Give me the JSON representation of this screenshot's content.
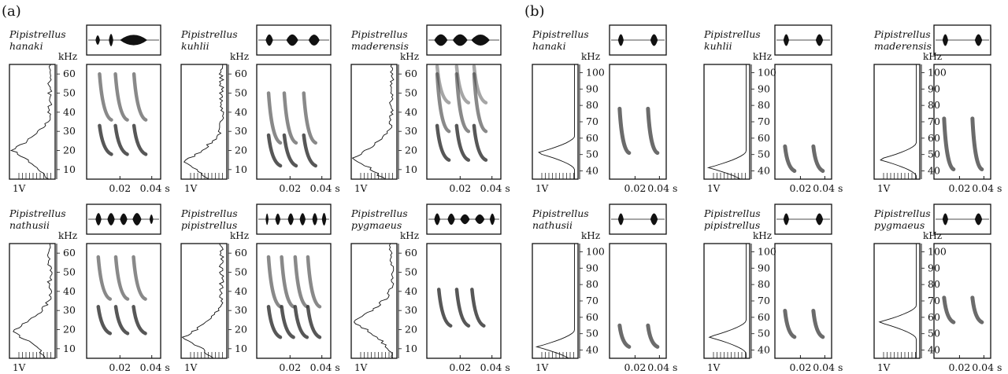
{
  "panels": [
    {
      "label": "(a)",
      "species": [
        {
          "genus": "Pipistrellus",
          "epithet": "hanaki"
        },
        {
          "genus": "Pipistrellus",
          "epithet": "kuhlii"
        },
        {
          "genus": "Pipistrellus",
          "epithet": "maderensis"
        },
        {
          "genus": "Pipistrellus",
          "epithet": "nathusii"
        },
        {
          "genus": "Pipistrellus",
          "epithet": "pipistrellus"
        },
        {
          "genus": "Pipistrellus",
          "epithet": "pygmaeus"
        }
      ],
      "freq_unit": "kHz",
      "freq_ticks": [
        10,
        20,
        30,
        40,
        50,
        60
      ],
      "time_ticks": [
        "0.02",
        "0.04 s"
      ],
      "amp_label": "1V"
    },
    {
      "label": "(b)",
      "species": [
        {
          "genus": "Pipistrellus",
          "epithet": "hanaki"
        },
        {
          "genus": "Pipistrellus",
          "epithet": "kuhlii"
        },
        {
          "genus": "Pipistrellus",
          "epithet": "maderensis"
        },
        {
          "genus": "Pipistrellus",
          "epithet": "nathusii"
        },
        {
          "genus": "Pipistrellus",
          "epithet": "pipistrellus"
        },
        {
          "genus": "Pipistrellus",
          "epithet": "pygmaeus"
        }
      ],
      "freq_unit": "kHz",
      "freq_ticks": [
        40,
        50,
        60,
        70,
        80,
        90,
        100
      ],
      "time_ticks": [
        "0.02",
        "0.04 s"
      ],
      "amp_label": "1V"
    }
  ],
  "colors": {
    "ink": "#111111",
    "spectrogram": "#3a3a3a"
  }
}
